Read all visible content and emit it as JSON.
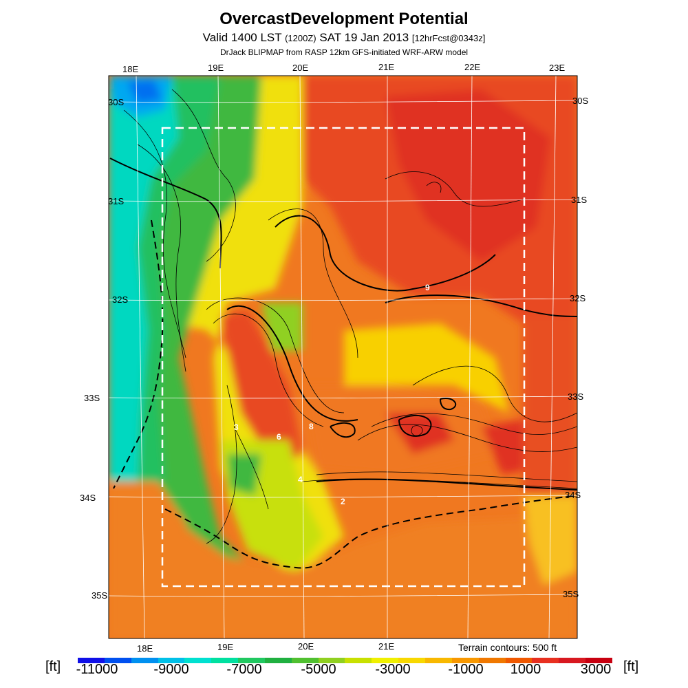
{
  "header": {
    "title": "OvercastDevelopment Potential",
    "valid_text": "Valid 1400 LST",
    "zulu": "(1200Z)",
    "date": "SAT 19 Jan 2013",
    "forecast": "[12hrFcst@0343z]",
    "subtitle": "DrJack BLIPMAP from RASP 12km GFS-initiated WRF-ARW model"
  },
  "map": {
    "lon_top": [
      "18E",
      "19E",
      "20E",
      "21E",
      "22E",
      "23E"
    ],
    "lon_bottom": [
      "18E",
      "19E",
      "20E",
      "21E"
    ],
    "lat_left": [
      "30S",
      "31S",
      "32S",
      "33S",
      "34S",
      "35S"
    ],
    "lat_right": [
      "30S",
      "31S",
      "32S",
      "33S",
      "34S",
      "35S"
    ],
    "point_labels": [
      "9",
      "6",
      "8",
      "3",
      "4",
      "2"
    ],
    "terrain_contours": "Terrain contours: 500 ft"
  },
  "colorbar": {
    "unit": "[ft]",
    "ticks": [
      "-11000",
      "-9000",
      "-7000",
      "-5000",
      "-3000",
      "-1000",
      "1000",
      "3000"
    ],
    "colors": [
      "#1010e8",
      "#0050f0",
      "#0090f0",
      "#00c0e8",
      "#00e0d0",
      "#00e0a0",
      "#20c860",
      "#20b040",
      "#50c030",
      "#90d020",
      "#c8e000",
      "#f0f000",
      "#f8d800",
      "#f8b800",
      "#f89800",
      "#f07800",
      "#f05800",
      "#e83020",
      "#d81820",
      "#c80010"
    ]
  }
}
